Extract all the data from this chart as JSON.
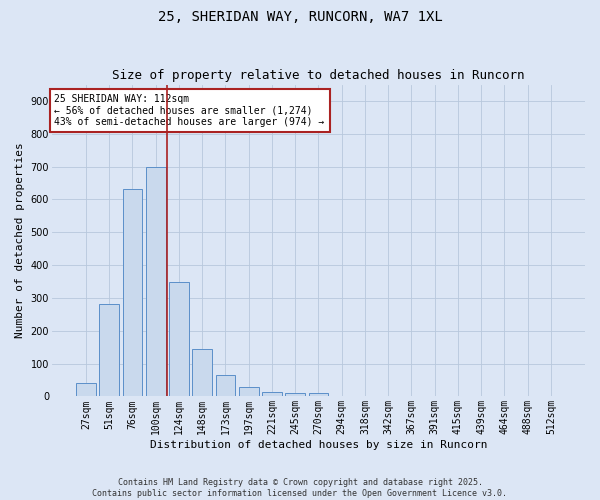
{
  "title": "25, SHERIDAN WAY, RUNCORN, WA7 1XL",
  "subtitle": "Size of property relative to detached houses in Runcorn",
  "xlabel": "Distribution of detached houses by size in Runcorn",
  "ylabel": "Number of detached properties",
  "footer_line1": "Contains HM Land Registry data © Crown copyright and database right 2025.",
  "footer_line2": "Contains public sector information licensed under the Open Government Licence v3.0.",
  "annotation_title": "25 SHERIDAN WAY: 112sqm",
  "annotation_line2": "← 56% of detached houses are smaller (1,274)",
  "annotation_line3": "43% of semi-detached houses are larger (974) →",
  "bar_color": "#c9d9ed",
  "bar_edge_color": "#5b8fc9",
  "vline_color": "#aa2222",
  "background_color": "#dce6f5",
  "plot_bg_color": "#dce6f5",
  "grid_color": "#b8c8dc",
  "categories": [
    "27sqm",
    "51sqm",
    "76sqm",
    "100sqm",
    "124sqm",
    "148sqm",
    "173sqm",
    "197sqm",
    "221sqm",
    "245sqm",
    "270sqm",
    "294sqm",
    "318sqm",
    "342sqm",
    "367sqm",
    "391sqm",
    "415sqm",
    "439sqm",
    "464sqm",
    "488sqm",
    "512sqm"
  ],
  "values": [
    40,
    283,
    632,
    700,
    350,
    143,
    65,
    28,
    14,
    11,
    11,
    0,
    0,
    0,
    0,
    0,
    0,
    0,
    0,
    0,
    0
  ],
  "ylim": [
    0,
    950
  ],
  "yticks": [
    0,
    100,
    200,
    300,
    400,
    500,
    600,
    700,
    800,
    900
  ],
  "vline_x_index": 3.5,
  "ann_box_color": "#ffffff",
  "ann_edge_color": "#aa2222",
  "title_fontsize": 10,
  "subtitle_fontsize": 9,
  "ylabel_fontsize": 8,
  "xlabel_fontsize": 8,
  "tick_fontsize": 7,
  "ann_fontsize": 7,
  "footer_fontsize": 6
}
